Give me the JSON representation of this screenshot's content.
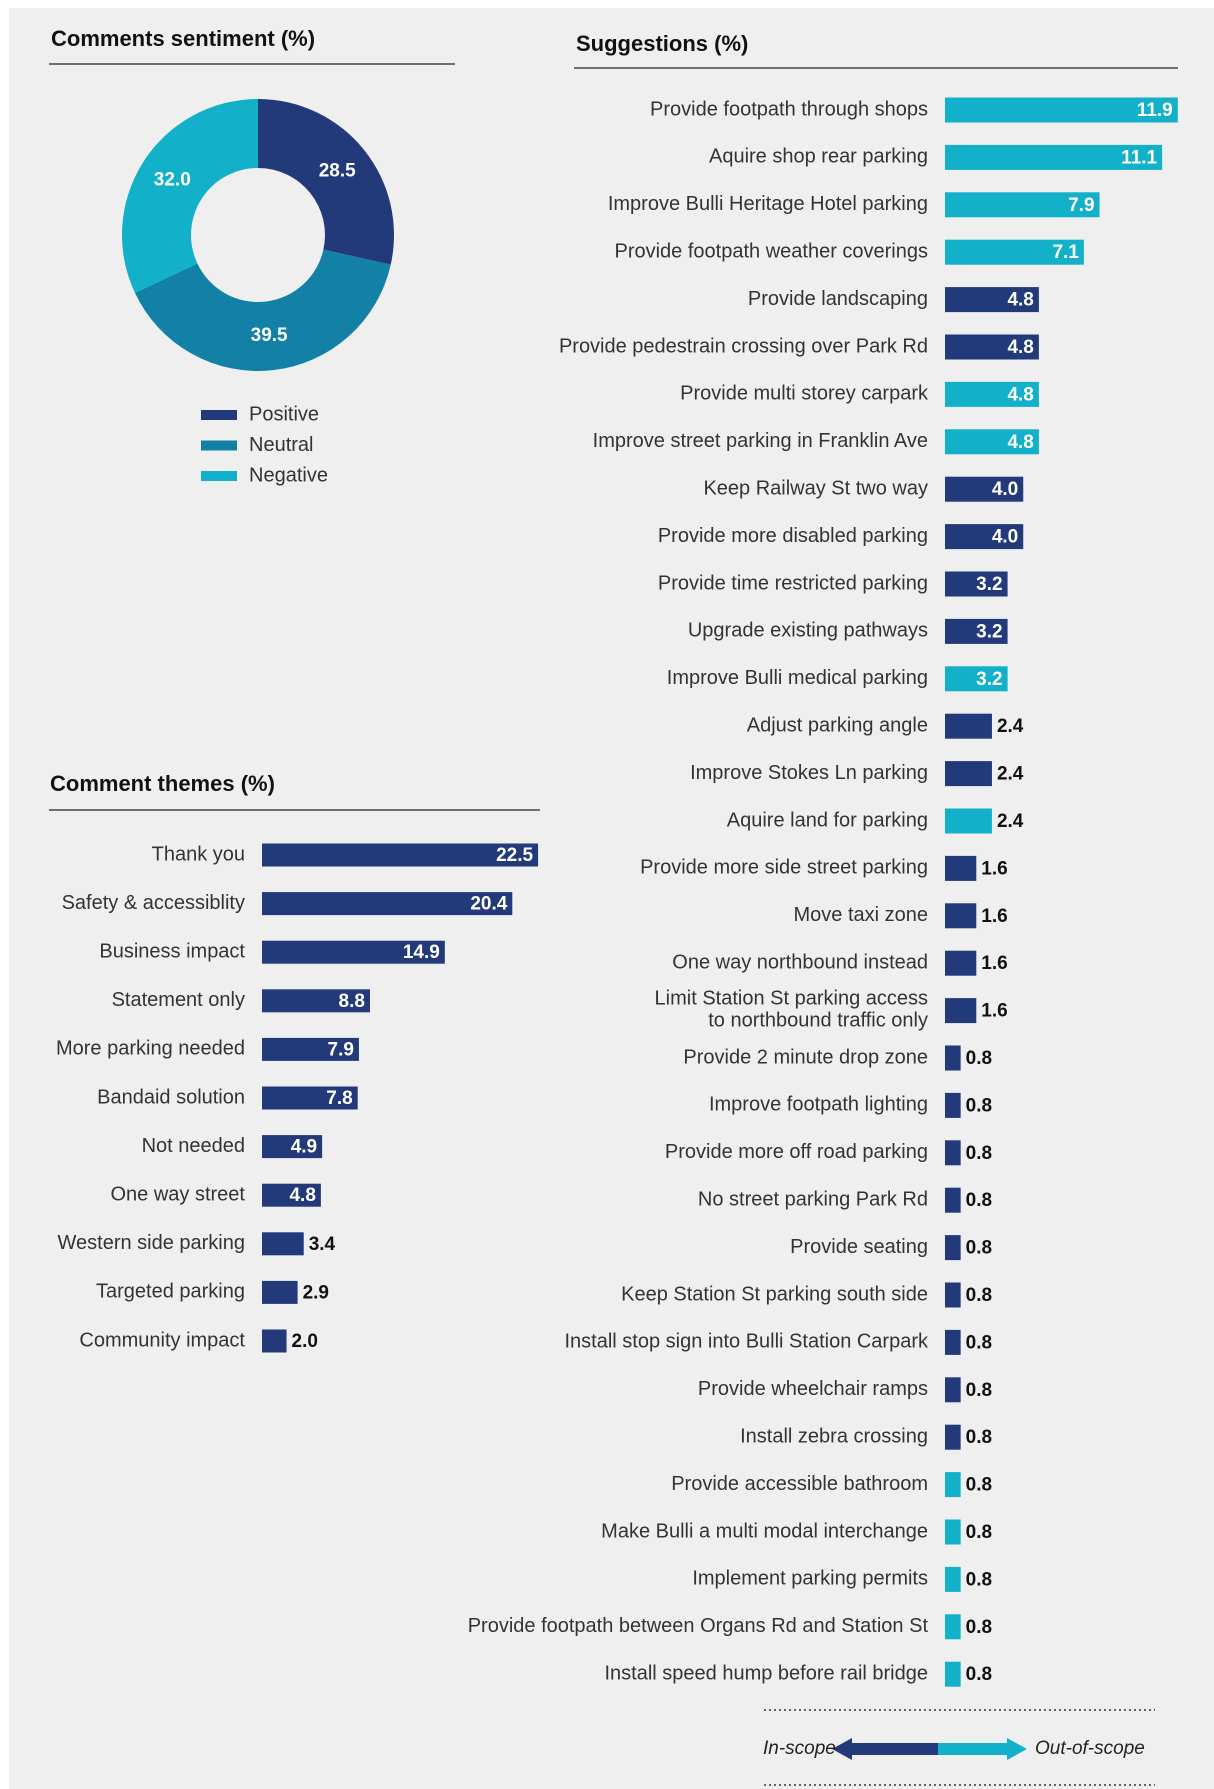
{
  "chart_data": [
    {
      "type": "pie",
      "donut": true,
      "title": "Comments sentiment (%)",
      "categories": [
        "Positive",
        "Neutral",
        "Negative"
      ],
      "values": [
        28.5,
        39.5,
        32.0
      ],
      "value_labels": [
        "28.5",
        "39.5",
        "32.0"
      ],
      "colors": [
        "#233a7a",
        "#1380a6",
        "#12b0c9"
      ]
    },
    {
      "type": "bar",
      "orientation": "horizontal",
      "title": "Comment themes (%)",
      "categories": [
        "Thank you",
        "Safety & accessiblity",
        "Business impact",
        "Statement only",
        "More parking needed",
        "Bandaid solution",
        "Not needed",
        "One way street",
        "Western side parking",
        "Targeted parking",
        "Community impact"
      ],
      "values": [
        22.5,
        20.4,
        14.9,
        8.8,
        7.9,
        7.8,
        4.9,
        4.8,
        3.4,
        2.9,
        2.0
      ],
      "value_labels": [
        "22.5",
        "20.4",
        "14.9",
        "8.8",
        "7.9",
        "7.8",
        "4.9",
        "4.8",
        "3.4",
        "2.9",
        "2.0"
      ],
      "color": "#233a7a"
    },
    {
      "type": "bar",
      "orientation": "horizontal",
      "title": "Suggestions (%)",
      "categories": [
        "Provide footpath through shops",
        "Aquire shop rear parking",
        "Improve Bulli Heritage Hotel parking",
        "Provide footpath weather coverings",
        "Provide landscaping",
        "Provide pedestrain crossing over Park Rd",
        "Provide multi storey carpark",
        "Improve street parking in Franklin Ave",
        "Keep Railway St two way",
        "Provide more disabled parking",
        "Provide time restricted parking",
        "Upgrade existing pathways",
        "Improve Bulli medical parking",
        "Adjust parking angle",
        "Improve Stokes Ln parking",
        "Aquire land for parking",
        "Provide more side street parking",
        "Move taxi zone",
        "One way northbound instead",
        "Limit Station St parking access\nto northbound traffic only",
        "Provide 2 minute drop zone",
        "Improve footpath lighting",
        "Provide more off road parking",
        "No street parking Park Rd",
        "Provide seating",
        "Keep Station St parking south side",
        "Install stop sign into Bulli Station Carpark",
        "Provide wheelchair ramps",
        "Install zebra crossing",
        "Provide accessible bathroom",
        "Make Bulli a multi modal interchange",
        "Implement parking permits",
        "Provide footpath between Organs Rd and Station St",
        "Install speed hump before rail bridge"
      ],
      "values": [
        11.9,
        11.1,
        7.9,
        7.1,
        4.8,
        4.8,
        4.8,
        4.8,
        4.0,
        4.0,
        3.2,
        3.2,
        3.2,
        2.4,
        2.4,
        2.4,
        1.6,
        1.6,
        1.6,
        1.6,
        0.8,
        0.8,
        0.8,
        0.8,
        0.8,
        0.8,
        0.8,
        0.8,
        0.8,
        0.8,
        0.8,
        0.8,
        0.8,
        0.8
      ],
      "value_labels": [
        "11.9",
        "11.1",
        "7.9",
        "7.1",
        "4.8",
        "4.8",
        "4.8",
        "4.8",
        "4.0",
        "4.0",
        "3.2",
        "3.2",
        "3.2",
        "2.4",
        "2.4",
        "2.4",
        "1.6",
        "1.6",
        "1.6",
        "1.6",
        "0.8",
        "0.8",
        "0.8",
        "0.8",
        "0.8",
        "0.8",
        "0.8",
        "0.8",
        "0.8",
        "0.8",
        "0.8",
        "0.8",
        "0.8",
        "0.8"
      ],
      "colors": [
        "#12b0c9",
        "#12b0c9",
        "#12b0c9",
        "#12b0c9",
        "#233a7a",
        "#233a7a",
        "#12b0c9",
        "#12b0c9",
        "#233a7a",
        "#233a7a",
        "#233a7a",
        "#233a7a",
        "#12b0c9",
        "#233a7a",
        "#233a7a",
        "#12b0c9",
        "#233a7a",
        "#233a7a",
        "#233a7a",
        "#233a7a",
        "#233a7a",
        "#233a7a",
        "#233a7a",
        "#233a7a",
        "#233a7a",
        "#233a7a",
        "#233a7a",
        "#233a7a",
        "#233a7a",
        "#12b0c9",
        "#12b0c9",
        "#12b0c9",
        "#12b0c9",
        "#12b0c9"
      ],
      "legend": {
        "labels": [
          "In-scope",
          "Out-of-scope"
        ],
        "colors": [
          "#233a7a",
          "#12b0c9"
        ]
      }
    }
  ]
}
